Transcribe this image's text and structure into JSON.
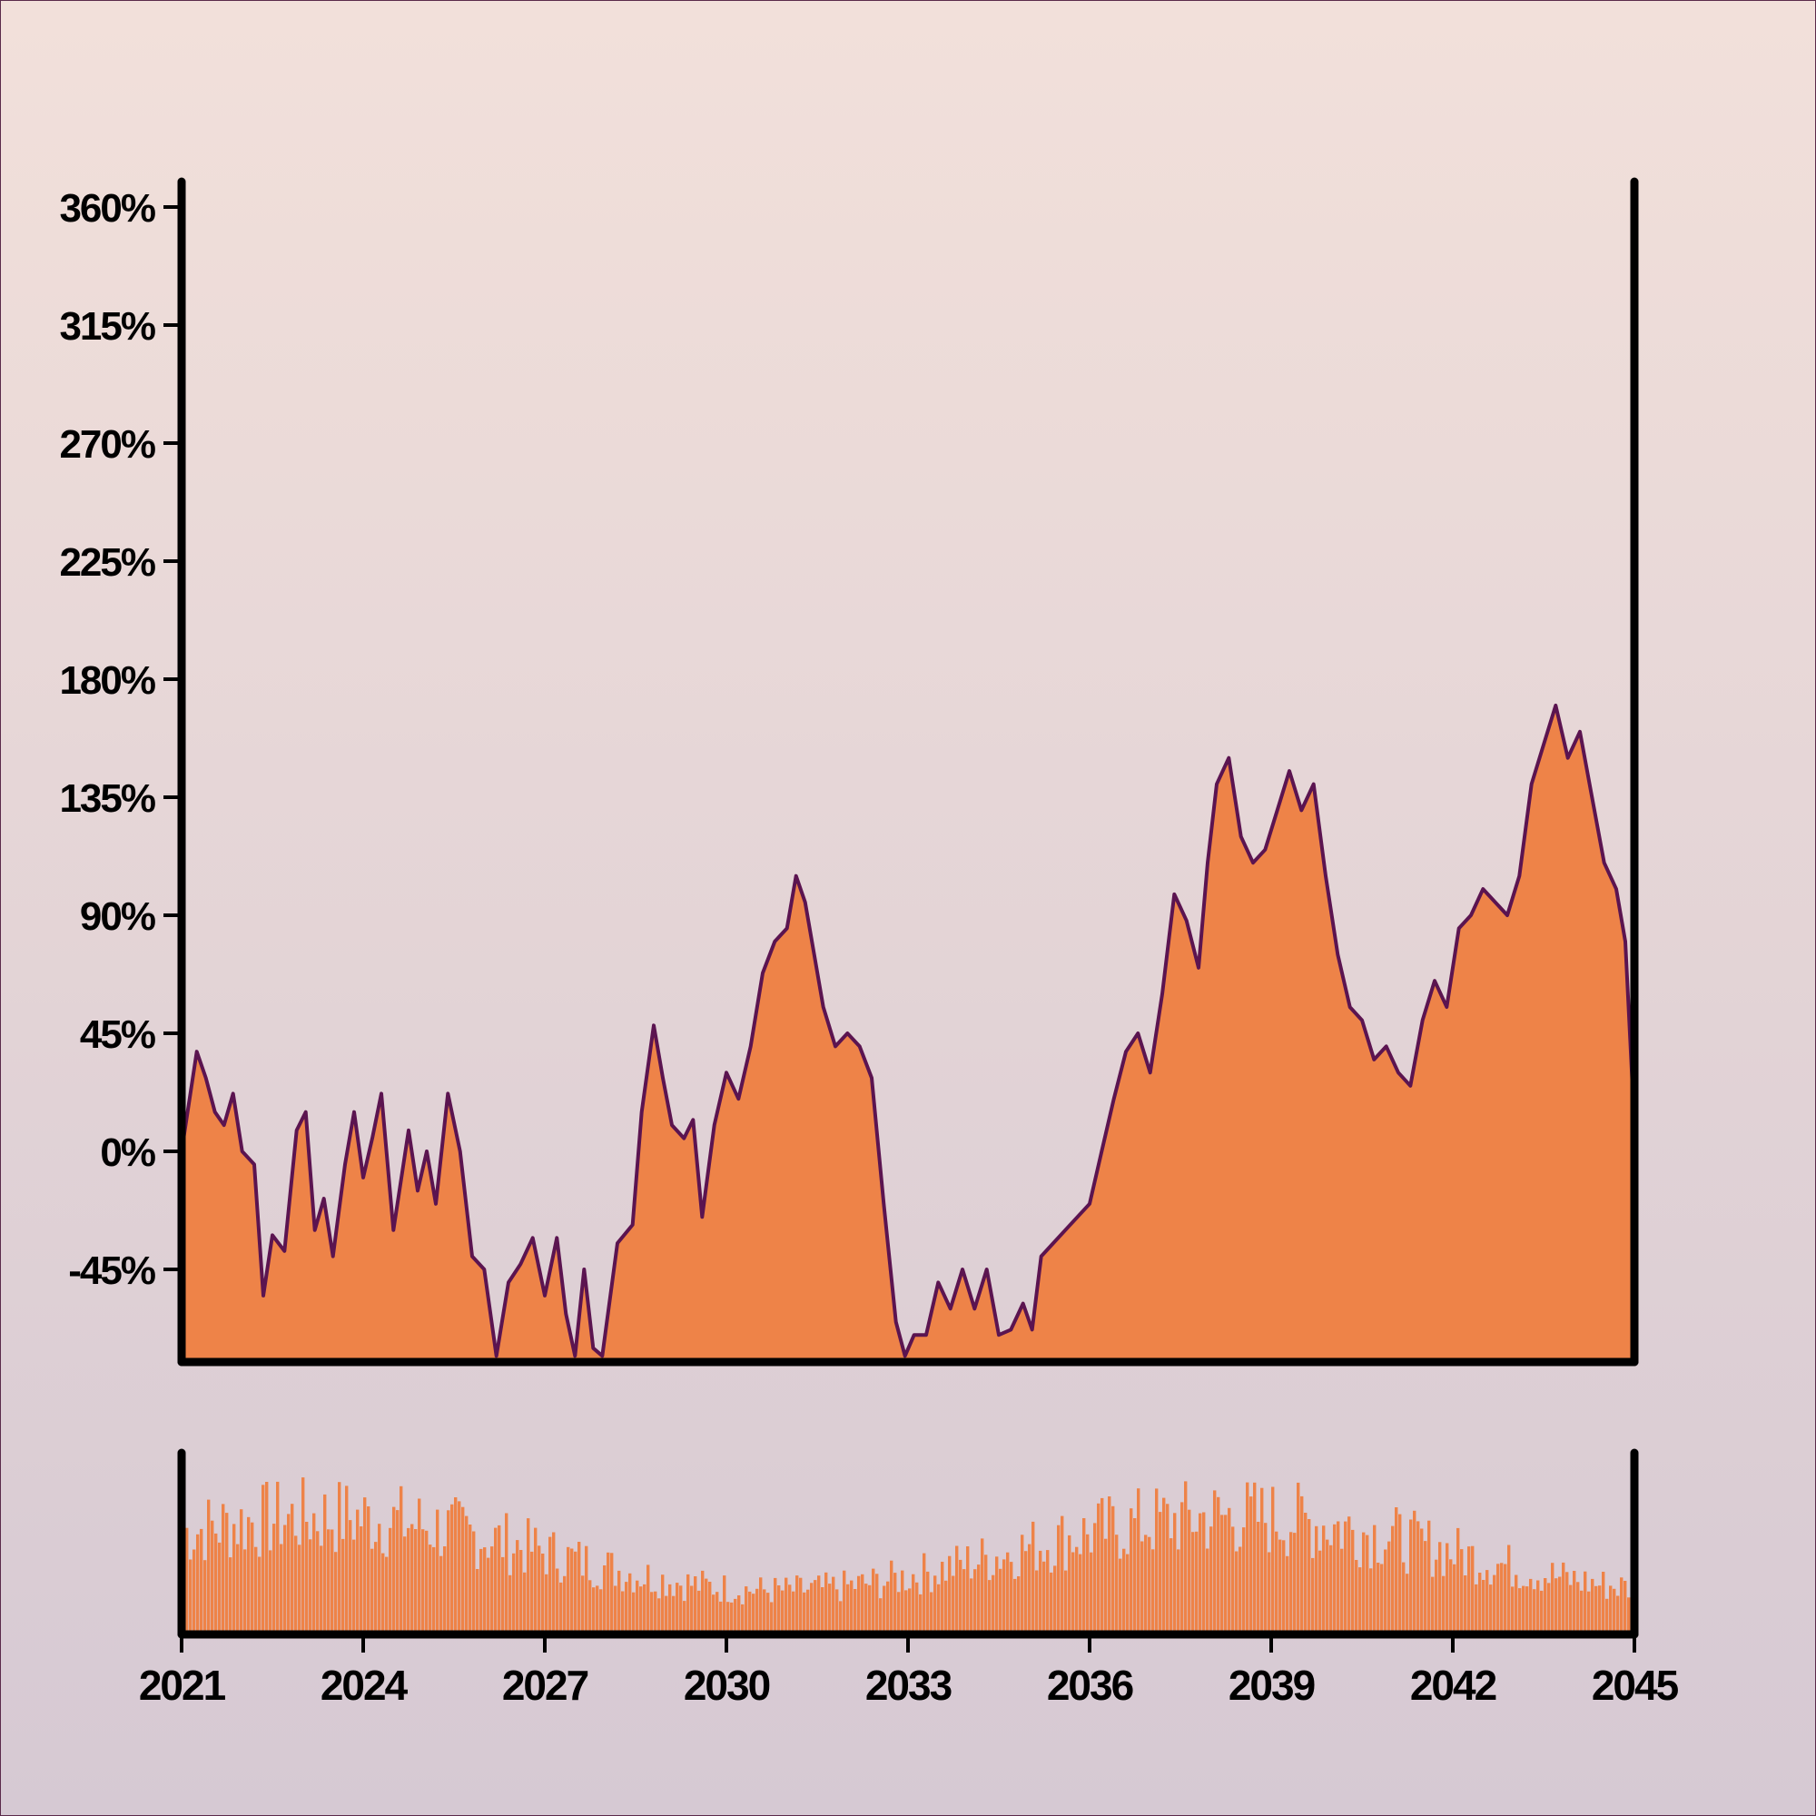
{
  "chart_data": {
    "type": "area",
    "title": "",
    "xlabel": "",
    "ylabel": "",
    "x_ticks": [
      "2021",
      "2024",
      "2027",
      "2030",
      "2033",
      "2036",
      "2039",
      "2042",
      "2045"
    ],
    "x_range": [
      2021,
      2045
    ],
    "y_ticks": [
      "-45%",
      "0%",
      "45%",
      "90%",
      "135%",
      "180%",
      "225%",
      "270%",
      "315%",
      "360%"
    ],
    "y_tick_values": [
      -45,
      0,
      45,
      90,
      135,
      180,
      225,
      270,
      315,
      360
    ],
    "ylim": [
      -78,
      370
    ],
    "grid": false,
    "colors": {
      "fill": "#ee8348",
      "line": "#5b1450",
      "axis": "#000000"
    },
    "series": [
      {
        "points": [
          [
            2021.0,
            0
          ],
          [
            2021.25,
            38
          ],
          [
            2021.4,
            28
          ],
          [
            2021.55,
            15
          ],
          [
            2021.7,
            10
          ],
          [
            2021.85,
            22
          ],
          [
            2022.0,
            0
          ],
          [
            2022.2,
            -5
          ],
          [
            2022.35,
            -55
          ],
          [
            2022.5,
            -32
          ],
          [
            2022.7,
            -38
          ],
          [
            2022.9,
            8
          ],
          [
            2023.05,
            15
          ],
          [
            2023.2,
            -30
          ],
          [
            2023.35,
            -18
          ],
          [
            2023.5,
            -40
          ],
          [
            2023.7,
            -5
          ],
          [
            2023.85,
            15
          ],
          [
            2024.0,
            -10
          ],
          [
            2024.15,
            5
          ],
          [
            2024.3,
            22
          ],
          [
            2024.5,
            -30
          ],
          [
            2024.75,
            8
          ],
          [
            2024.9,
            -15
          ],
          [
            2025.05,
            0
          ],
          [
            2025.2,
            -20
          ],
          [
            2025.4,
            22
          ],
          [
            2025.6,
            0
          ],
          [
            2025.8,
            -40
          ],
          [
            2026.0,
            -45
          ],
          [
            2026.2,
            -78
          ],
          [
            2026.4,
            -50
          ],
          [
            2026.6,
            -43
          ],
          [
            2026.8,
            -33
          ],
          [
            2027.0,
            -55
          ],
          [
            2027.2,
            -33
          ],
          [
            2027.35,
            -62
          ],
          [
            2027.5,
            -78
          ],
          [
            2027.65,
            -45
          ],
          [
            2027.8,
            -75
          ],
          [
            2027.95,
            -78
          ],
          [
            2028.2,
            -35
          ],
          [
            2028.45,
            -28
          ],
          [
            2028.6,
            15
          ],
          [
            2028.8,
            48
          ],
          [
            2028.95,
            28
          ],
          [
            2029.1,
            10
          ],
          [
            2029.3,
            5
          ],
          [
            2029.45,
            12
          ],
          [
            2029.6,
            -25
          ],
          [
            2029.8,
            10
          ],
          [
            2030.0,
            30
          ],
          [
            2030.2,
            20
          ],
          [
            2030.4,
            40
          ],
          [
            2030.6,
            68
          ],
          [
            2030.8,
            80
          ],
          [
            2031.0,
            85
          ],
          [
            2031.15,
            105
          ],
          [
            2031.3,
            95
          ],
          [
            2031.45,
            75
          ],
          [
            2031.6,
            55
          ],
          [
            2031.8,
            40
          ],
          [
            2032.0,
            45
          ],
          [
            2032.2,
            40
          ],
          [
            2032.4,
            28
          ],
          [
            2032.6,
            -20
          ],
          [
            2032.8,
            -65
          ],
          [
            2032.95,
            -78
          ],
          [
            2033.1,
            -70
          ],
          [
            2033.3,
            -70
          ],
          [
            2033.5,
            -50
          ],
          [
            2033.7,
            -60
          ],
          [
            2033.9,
            -45
          ],
          [
            2034.1,
            -60
          ],
          [
            2034.3,
            -45
          ],
          [
            2034.5,
            -70
          ],
          [
            2034.7,
            -68
          ],
          [
            2034.9,
            -58
          ],
          [
            2035.05,
            -68
          ],
          [
            2035.2,
            -40
          ],
          [
            2035.4,
            -35
          ],
          [
            2035.6,
            -30
          ],
          [
            2035.8,
            -25
          ],
          [
            2036.0,
            -20
          ],
          [
            2036.2,
            0
          ],
          [
            2036.4,
            20
          ],
          [
            2036.6,
            38
          ],
          [
            2036.8,
            45
          ],
          [
            2037.0,
            30
          ],
          [
            2037.2,
            60
          ],
          [
            2037.4,
            98
          ],
          [
            2037.6,
            88
          ],
          [
            2037.8,
            70
          ],
          [
            2037.95,
            110
          ],
          [
            2038.1,
            140
          ],
          [
            2038.3,
            150
          ],
          [
            2038.5,
            120
          ],
          [
            2038.7,
            110
          ],
          [
            2038.9,
            115
          ],
          [
            2039.1,
            130
          ],
          [
            2039.3,
            145
          ],
          [
            2039.5,
            130
          ],
          [
            2039.7,
            140
          ],
          [
            2039.9,
            105
          ],
          [
            2040.1,
            75
          ],
          [
            2040.3,
            55
          ],
          [
            2040.5,
            50
          ],
          [
            2040.7,
            35
          ],
          [
            2040.9,
            40
          ],
          [
            2041.1,
            30
          ],
          [
            2041.3,
            25
          ],
          [
            2041.5,
            50
          ],
          [
            2041.7,
            65
          ],
          [
            2041.9,
            55
          ],
          [
            2042.1,
            85
          ],
          [
            2042.3,
            90
          ],
          [
            2042.5,
            100
          ],
          [
            2042.7,
            95
          ],
          [
            2042.9,
            90
          ],
          [
            2043.1,
            105
          ],
          [
            2043.3,
            140
          ],
          [
            2043.5,
            155
          ],
          [
            2043.7,
            170
          ],
          [
            2043.9,
            150
          ],
          [
            2044.1,
            160
          ],
          [
            2044.3,
            135
          ],
          [
            2044.5,
            110
          ],
          [
            2044.7,
            100
          ],
          [
            2044.85,
            80
          ],
          [
            2045.0,
            10
          ]
        ]
      }
    ],
    "volume_panel": {
      "type": "bar",
      "bar_count": 400,
      "color": "#ee8348"
    }
  }
}
